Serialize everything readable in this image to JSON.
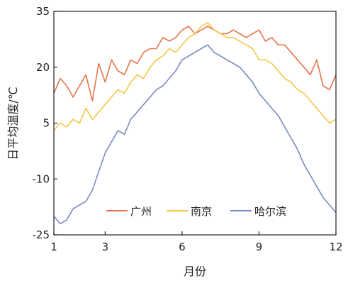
{
  "chart_data": {
    "type": "line",
    "xlabel": "月份",
    "ylabel": "日平均温度/℃",
    "xlim": [
      1,
      12
    ],
    "ylim": [
      -25,
      35
    ],
    "x_ticks": [
      1,
      3,
      6,
      9,
      12
    ],
    "y_ticks": [
      -25,
      -10,
      5,
      20,
      35
    ],
    "grid": false,
    "legend_position": "bottom-center",
    "series": [
      {
        "name": "广州",
        "color": "#E8744C",
        "x": [
          1,
          1.25,
          1.5,
          1.75,
          2,
          2.25,
          2.5,
          2.75,
          3,
          3.25,
          3.5,
          3.75,
          4,
          4.25,
          4.5,
          4.75,
          5,
          5.25,
          5.5,
          5.75,
          6,
          6.25,
          6.5,
          6.75,
          7,
          7.25,
          7.5,
          7.75,
          8,
          8.25,
          8.5,
          8.75,
          9,
          9.25,
          9.5,
          9.75,
          10,
          10.25,
          10.5,
          10.75,
          11,
          11.25,
          11.5,
          11.75,
          12
        ],
        "y": [
          13,
          17,
          15,
          12,
          15,
          18,
          11,
          21,
          16,
          22,
          19,
          18,
          22,
          21,
          24,
          25,
          25,
          28,
          27,
          28,
          30,
          31,
          29,
          30,
          31,
          30,
          29,
          29,
          30,
          29,
          28,
          29,
          30,
          27,
          28,
          26,
          26,
          24,
          22,
          20,
          18,
          22,
          15,
          14,
          18
        ]
      },
      {
        "name": "南京",
        "color": "#F2C84B",
        "x": [
          1,
          1.25,
          1.5,
          1.75,
          2,
          2.25,
          2.5,
          2.75,
          3,
          3.25,
          3.5,
          3.75,
          4,
          4.25,
          4.5,
          4.75,
          5,
          5.25,
          5.5,
          5.75,
          6,
          6.25,
          6.5,
          6.75,
          7,
          7.25,
          7.5,
          7.75,
          8,
          8.25,
          8.5,
          8.75,
          9,
          9.25,
          9.5,
          9.75,
          10,
          10.25,
          10.5,
          10.75,
          11,
          11.25,
          11.5,
          11.75,
          12
        ],
        "y": [
          3,
          5,
          4,
          6,
          5,
          9,
          6,
          8,
          10,
          12,
          14,
          13,
          16,
          18,
          17,
          20,
          22,
          23,
          25,
          24,
          26,
          28,
          29,
          31,
          32,
          30,
          29,
          28,
          28,
          27,
          26,
          25,
          22,
          22,
          21,
          19,
          17,
          16,
          14,
          13,
          11,
          9,
          7,
          5,
          6
        ]
      },
      {
        "name": "哈尔滨",
        "color": "#7B8AC4",
        "x": [
          1,
          1.25,
          1.5,
          1.75,
          2,
          2.25,
          2.5,
          2.75,
          3,
          3.25,
          3.5,
          3.75,
          4,
          4.25,
          4.5,
          4.75,
          5,
          5.25,
          5.5,
          5.75,
          6,
          6.25,
          6.5,
          6.75,
          7,
          7.25,
          7.5,
          7.75,
          8,
          8.25,
          8.5,
          8.75,
          9,
          9.25,
          9.5,
          9.75,
          10,
          10.25,
          10.5,
          10.75,
          11,
          11.25,
          11.5,
          11.75,
          12
        ],
        "y": [
          -20,
          -22,
          -21,
          -18,
          -17,
          -16,
          -13,
          -8,
          -3,
          0,
          3,
          2,
          6,
          8,
          10,
          12,
          14,
          15,
          17,
          19,
          22,
          23,
          24,
          25,
          26,
          24,
          23,
          22,
          21,
          20,
          18,
          16,
          13,
          11,
          9,
          7,
          4,
          1,
          -2,
          -6,
          -9,
          -12,
          -15,
          -17,
          -19
        ]
      }
    ]
  }
}
